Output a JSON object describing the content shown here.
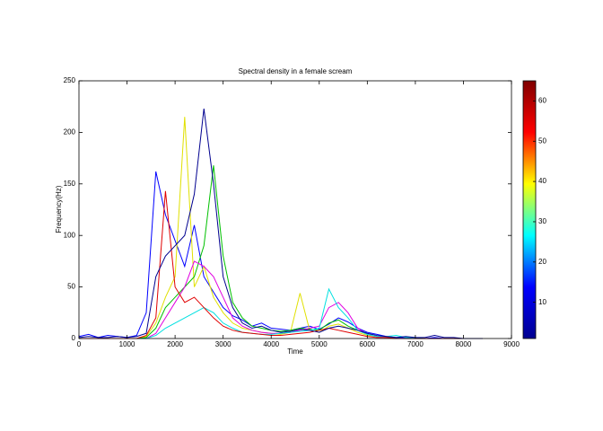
{
  "chart_data": {
    "type": "line",
    "title": "Spectral density in a female scream",
    "xlabel": "Time",
    "ylabel": "Frequency(Hz)",
    "x": [
      0,
      200,
      400,
      600,
      800,
      1000,
      1200,
      1400,
      1600,
      1800,
      2000,
      2200,
      2400,
      2600,
      2800,
      3000,
      3200,
      3400,
      3600,
      3800,
      4000,
      4200,
      4400,
      4600,
      4800,
      5000,
      5200,
      5400,
      5600,
      5800,
      6000,
      6200,
      6400,
      6600,
      6800,
      7000,
      7200,
      7400,
      7600,
      7800,
      8000,
      8200,
      8400
    ],
    "series": [
      {
        "color": "#0000ff",
        "values": [
          2,
          4,
          1,
          3,
          2,
          1,
          3,
          25,
          162,
          120,
          95,
          70,
          110,
          60,
          45,
          30,
          22,
          18,
          12,
          15,
          10,
          9,
          8,
          10,
          12,
          9,
          14,
          20,
          16,
          10,
          6,
          4,
          2,
          1,
          1,
          0,
          0,
          1,
          0,
          0,
          0,
          0,
          0
        ]
      },
      {
        "color": "#e0e000",
        "values": [
          0,
          0,
          0,
          0,
          0,
          0,
          0,
          2,
          15,
          40,
          60,
          215,
          50,
          70,
          40,
          25,
          15,
          10,
          8,
          6,
          5,
          4,
          6,
          44,
          8,
          6,
          12,
          14,
          10,
          6,
          3,
          2,
          1,
          0,
          0,
          0,
          0,
          0,
          0,
          0,
          0,
          0,
          0
        ]
      },
      {
        "color": "#00c000",
        "values": [
          0,
          0,
          0,
          0,
          0,
          0,
          0,
          1,
          10,
          30,
          40,
          50,
          60,
          90,
          168,
          80,
          35,
          20,
          12,
          10,
          8,
          7,
          8,
          10,
          9,
          8,
          15,
          18,
          12,
          8,
          4,
          2,
          1,
          0,
          0,
          0,
          0,
          0,
          0,
          0,
          0,
          0,
          0
        ]
      },
      {
        "color": "#e000e0",
        "values": [
          0,
          0,
          0,
          0,
          0,
          0,
          0,
          0,
          5,
          20,
          35,
          50,
          75,
          70,
          60,
          40,
          20,
          12,
          8,
          6,
          5,
          5,
          6,
          8,
          10,
          12,
          30,
          35,
          25,
          10,
          4,
          2,
          1,
          0,
          0,
          0,
          0,
          0,
          0,
          0,
          0,
          0,
          0
        ]
      },
      {
        "color": "#00e0e0",
        "values": [
          0,
          0,
          0,
          0,
          0,
          0,
          0,
          0,
          3,
          10,
          15,
          20,
          25,
          30,
          25,
          15,
          10,
          6,
          5,
          4,
          4,
          5,
          6,
          7,
          8,
          10,
          48,
          30,
          20,
          8,
          4,
          2,
          2,
          3,
          1,
          1,
          0,
          0,
          0,
          0,
          0,
          0,
          0
        ]
      },
      {
        "color": "#e00000",
        "values": [
          0,
          0,
          0,
          0,
          0,
          0,
          0,
          3,
          20,
          143,
          50,
          35,
          40,
          30,
          20,
          12,
          8,
          6,
          5,
          4,
          3,
          3,
          4,
          5,
          6,
          8,
          10,
          8,
          6,
          4,
          2,
          1,
          1,
          0,
          0,
          0,
          0,
          0,
          0,
          0,
          0,
          0,
          0
        ]
      },
      {
        "color": "#00008f",
        "values": [
          1,
          2,
          1,
          1,
          2,
          1,
          2,
          5,
          60,
          80,
          90,
          100,
          140,
          223,
          150,
          60,
          30,
          15,
          10,
          12,
          8,
          6,
          7,
          9,
          8,
          6,
          10,
          12,
          10,
          8,
          5,
          3,
          2,
          1,
          2,
          1,
          1,
          3,
          1,
          1,
          0,
          0,
          0
        ]
      }
    ],
    "xlim": [
      0,
      9000
    ],
    "xticks": [
      0,
      1000,
      2000,
      3000,
      4000,
      5000,
      6000,
      7000,
      8000,
      9000
    ],
    "ylim": [
      0,
      250
    ],
    "yticks": [
      0,
      50,
      100,
      150,
      200,
      250
    ],
    "colorbar": {
      "clim": [
        1,
        65
      ],
      "ticks": [
        10,
        20,
        30,
        40,
        50,
        60
      ],
      "colors": [
        "#00008f",
        "#0000ff",
        "#00ffff",
        "#ffff00",
        "#ff0000",
        "#800000"
      ]
    }
  }
}
